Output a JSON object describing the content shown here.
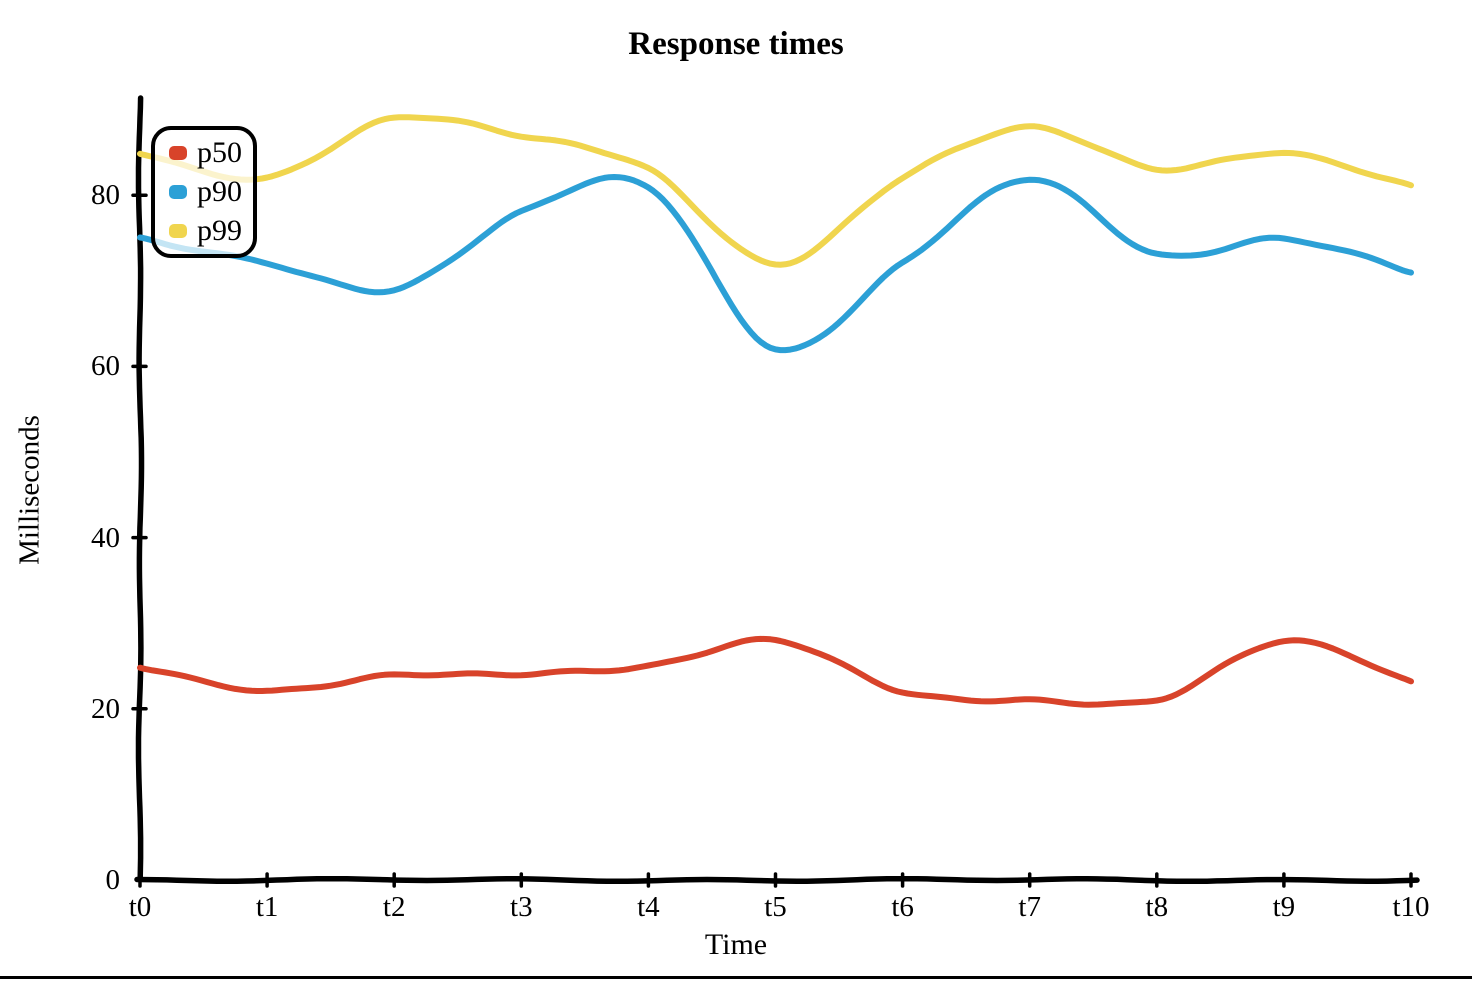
{
  "title": "Response times",
  "x_axis_label": "Time",
  "y_axis_label": "Milliseconds",
  "legend": [
    {
      "label": "p50",
      "color": "#d8432a"
    },
    {
      "label": "p90",
      "color": "#2ca0d6"
    },
    {
      "label": "p99",
      "color": "#f0d54e"
    }
  ],
  "chart_data": {
    "type": "line",
    "style": "hand-drawn",
    "title": "Response times",
    "xlabel": "Time",
    "ylabel": "Milliseconds",
    "x": [
      "t0",
      "t1",
      "t2",
      "t3",
      "t4",
      "t5",
      "t6",
      "t7",
      "t8",
      "t9",
      "t10"
    ],
    "series": [
      {
        "name": "p50",
        "color": "#d8432a",
        "values": [
          25,
          22,
          24,
          24,
          25,
          28,
          22,
          21,
          21,
          28,
          23
        ]
      },
      {
        "name": "p90",
        "color": "#2ca0d6",
        "values": [
          75,
          72,
          69,
          78,
          81,
          62,
          72,
          82,
          73,
          75,
          71
        ]
      },
      {
        "name": "p99",
        "color": "#f0d54e",
        "values": [
          85,
          82,
          89,
          87,
          83,
          72,
          82,
          88,
          83,
          85,
          81
        ]
      }
    ],
    "yticks": [
      0,
      20,
      40,
      60,
      80
    ],
    "ylim": [
      0,
      92
    ],
    "grid": false,
    "legend_position": "top-left",
    "axis_color": "#000000"
  }
}
